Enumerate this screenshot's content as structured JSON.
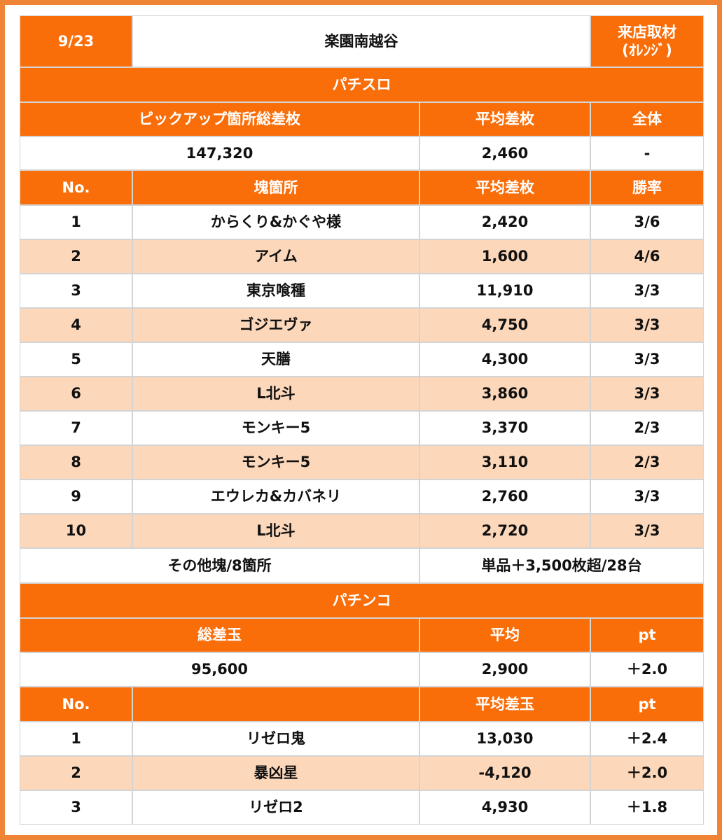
{
  "header": {
    "date": "9/23",
    "store": "楽園南越谷",
    "event_lines": [
      "来店取材",
      "(ｵﾚﾝｼﾞ)"
    ]
  },
  "slot": {
    "title": "パチスロ",
    "summary_headers": [
      "ピックアップ箇所総差枚",
      "平均差枚",
      "全体"
    ],
    "summary": [
      "147,320",
      "2,460",
      "-"
    ],
    "headers": [
      "No.",
      "塊箇所",
      "平均差枚",
      "勝率"
    ],
    "rows": [
      [
        "1",
        "からくり&かぐや様",
        "2,420",
        "3/6"
      ],
      [
        "2",
        "アイム",
        "1,600",
        "4/6"
      ],
      [
        "3",
        "東京喰種",
        "11,910",
        "3/3"
      ],
      [
        "4",
        "ゴジエヴァ",
        "4,750",
        "3/3"
      ],
      [
        "5",
        "天膳",
        "4,300",
        "3/3"
      ],
      [
        "6",
        "L北斗",
        "3,860",
        "3/3"
      ],
      [
        "7",
        "モンキー5",
        "3,370",
        "2/3"
      ],
      [
        "8",
        "モンキー5",
        "3,110",
        "2/3"
      ],
      [
        "9",
        "エウレカ&カバネリ",
        "2,760",
        "3/3"
      ],
      [
        "10",
        "L北斗",
        "2,720",
        "3/3"
      ]
    ],
    "other": [
      "その他塊/8箇所",
      "単品＋3,500枚超/28台"
    ]
  },
  "pachinko": {
    "title": "パチンコ",
    "summary_headers": [
      "総差玉",
      "平均",
      "pt"
    ],
    "summary": [
      "95,600",
      "2,900",
      "＋2.0"
    ],
    "headers": {
      "no": "No.",
      "avg": "平均差玉",
      "pt": "pt"
    },
    "rows": [
      [
        "1",
        "リゼロ鬼",
        "13,030",
        "＋2.4"
      ],
      [
        "2",
        "暴凶星",
        "-4,120",
        "＋2.0"
      ],
      [
        "3",
        "リゼロ2",
        "4,930",
        "＋1.8"
      ]
    ]
  }
}
